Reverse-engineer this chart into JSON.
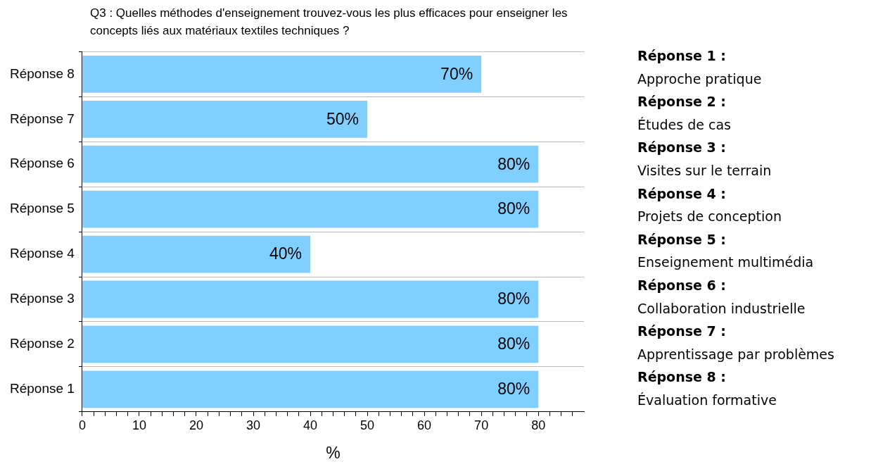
{
  "chart_data": {
    "type": "bar",
    "orientation": "horizontal",
    "title": "Q3 : Quelles méthodes d'enseignement trouvez-vous les plus efficaces pour enseigner les concepts liés aux matériaux textiles techniques ?",
    "xlabel": "%",
    "categories": [
      "Réponse 8",
      "Réponse 7",
      "Réponse 6",
      "Réponse 5",
      "Réponse 4",
      "Réponse 3",
      "Réponse 2",
      "Réponse 1"
    ],
    "values": [
      70,
      50,
      80,
      80,
      40,
      80,
      80,
      80
    ],
    "value_labels": [
      "70%",
      "50%",
      "80%",
      "80%",
      "40%",
      "80%",
      "80%",
      "80%"
    ],
    "color": "#80cfff",
    "xlim": [
      0,
      88
    ],
    "xticks": [
      0,
      {
        "value": 2,
        "label": null
      },
      {
        "value": 4,
        "label": null
      },
      {
        "value": 6,
        "label": null
      },
      {
        "value": 8,
        "label": null
      },
      10,
      {
        "value": 12,
        "label": null
      },
      {
        "value": 14,
        "label": null
      },
      {
        "value": 16,
        "label": null
      },
      {
        "value": 18,
        "label": null
      },
      20,
      {
        "value": 22,
        "label": null
      },
      {
        "value": 24,
        "label": null
      },
      {
        "value": 26,
        "label": null
      },
      {
        "value": 28,
        "label": null
      },
      30,
      {
        "value": 32,
        "label": null
      },
      {
        "value": 34,
        "label": null
      },
      {
        "value": 36,
        "label": null
      },
      {
        "value": 38,
        "label": null
      },
      40,
      {
        "value": 42,
        "label": null
      },
      {
        "value": 44,
        "label": null
      },
      {
        "value": 46,
        "label": null
      },
      {
        "value": 48,
        "label": null
      },
      50,
      {
        "value": 52,
        "label": null
      },
      {
        "value": 54,
        "label": null
      },
      {
        "value": 56,
        "label": null
      },
      {
        "value": 58,
        "label": null
      },
      60,
      {
        "value": 62,
        "label": null
      },
      {
        "value": 64,
        "label": null
      },
      {
        "value": 66,
        "label": null
      },
      {
        "value": 68,
        "label": null
      },
      70,
      {
        "value": 72,
        "label": null
      },
      {
        "value": 74,
        "label": null
      },
      {
        "value": 76,
        "label": null
      },
      {
        "value": 78,
        "label": null
      },
      80,
      {
        "value": 82,
        "label": null
      },
      {
        "value": 84,
        "label": null
      },
      {
        "value": 86,
        "label": null
      }
    ],
    "grid": "y",
    "annotations": [
      "Réponse 1 :",
      "Approche pratique",
      "Réponse 2 :",
      "Études de cas",
      "Réponse 3 :",
      "Visites sur le terrain",
      "Réponse 4 :",
      "Projets de conception",
      "Réponse 5 :",
      "Enseignement multimédia",
      "Réponse 6 :",
      "Collaboration industrielle",
      "Réponse 7 :",
      "Apprentissage par problèmes",
      "Réponse 8 :",
      "Évaluation formative"
    ]
  }
}
